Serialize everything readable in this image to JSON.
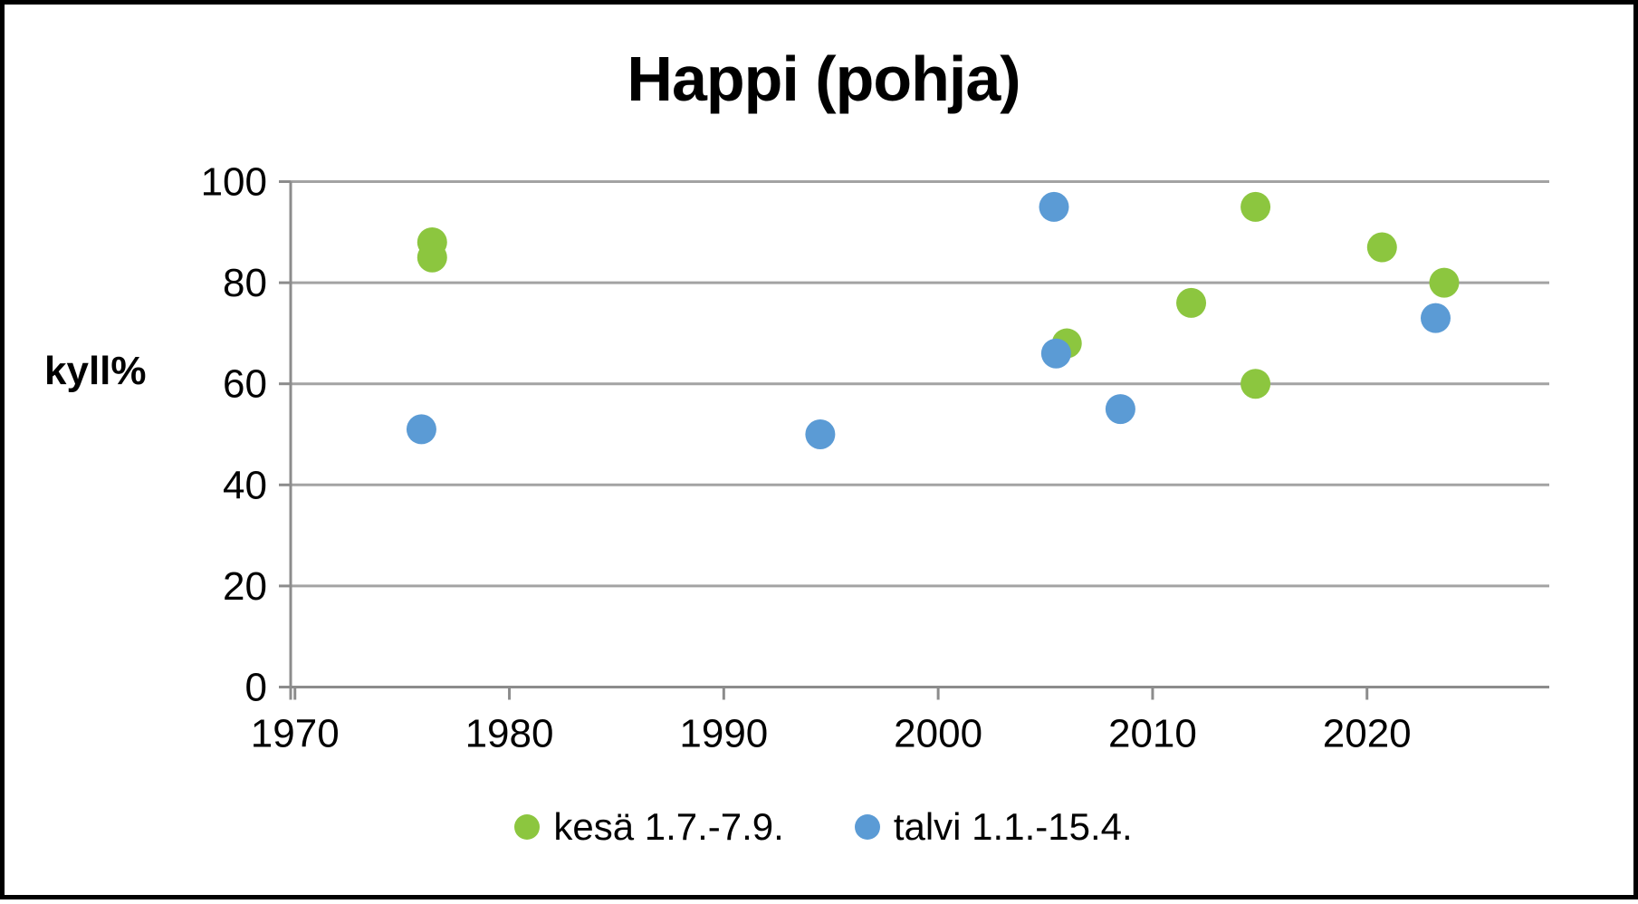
{
  "chart_data": {
    "type": "scatter",
    "title": "Happi (pohja)",
    "xlabel": "",
    "ylabel": "kyll%",
    "xlim": [
      1969.8,
      2028.5
    ],
    "ylim": [
      0,
      100
    ],
    "x_ticks": [
      1970,
      1980,
      1990,
      2000,
      2010,
      2020
    ],
    "y_ticks": [
      0,
      20,
      40,
      60,
      80,
      100
    ],
    "grid": "horizontal",
    "legend_position": "bottom",
    "series": [
      {
        "name": "kesä 1.7.-7.9.",
        "color": "#8CC63F",
        "points": [
          [
            1976.4,
            88
          ],
          [
            1976.4,
            85
          ],
          [
            2006.0,
            68
          ],
          [
            2011.8,
            76
          ],
          [
            2014.8,
            95
          ],
          [
            2014.8,
            60
          ],
          [
            2020.7,
            87
          ],
          [
            2023.6,
            80
          ]
        ]
      },
      {
        "name": "talvi 1.1.-15.4.",
        "color": "#5B9BD5",
        "points": [
          [
            1975.9,
            51
          ],
          [
            1994.5,
            50
          ],
          [
            2005.4,
            95
          ],
          [
            2005.5,
            66
          ],
          [
            2008.5,
            55
          ],
          [
            2023.2,
            73
          ]
        ]
      }
    ],
    "colors": {
      "grid": "#A3A3A3",
      "axis": "#8C8C8C",
      "text": "#000000"
    }
  }
}
